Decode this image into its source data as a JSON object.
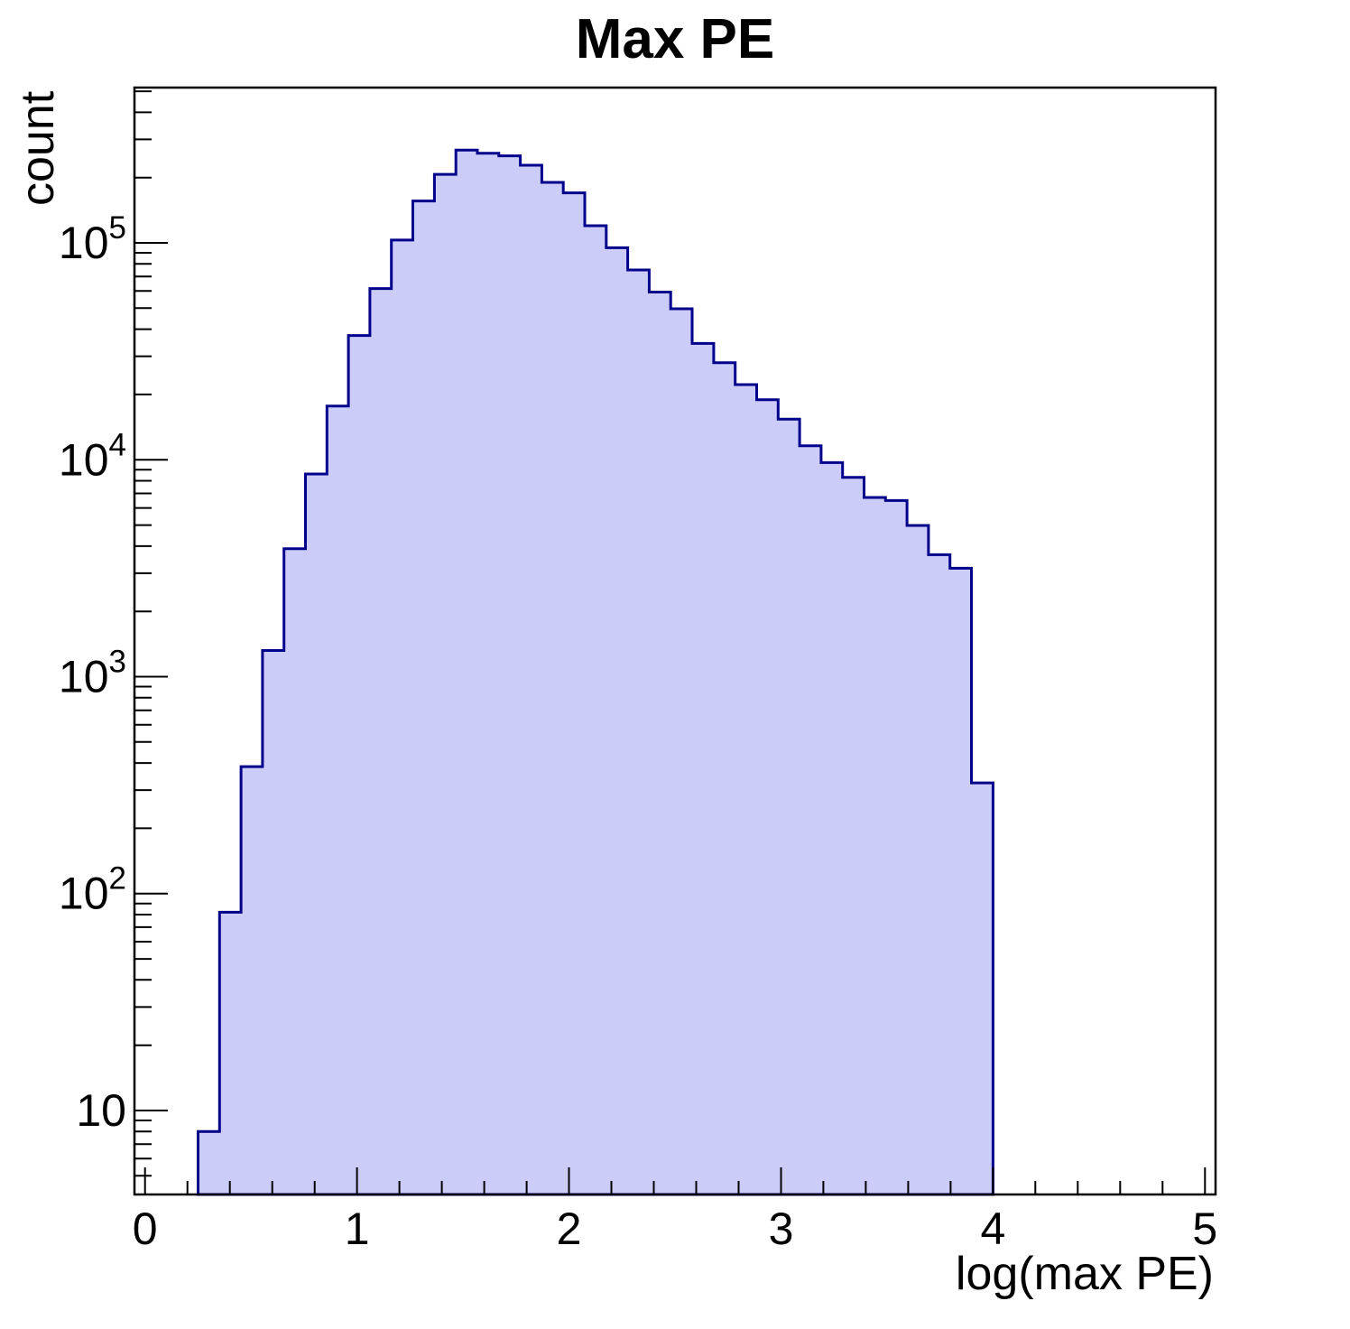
{
  "chart_data": {
    "type": "bar",
    "subtype": "histogram-log-y",
    "title": "Max PE",
    "xlabel": "log(max PE)",
    "ylabel": "count",
    "x_min": -0.05,
    "x_max": 5.05,
    "y_min": 4.1,
    "y_max": 520000,
    "y_scale": "log",
    "grid": false,
    "legend": null,
    "bin_start": 0.25,
    "bin_end": 4.0,
    "n_bins": 37,
    "values": [
      8,
      82,
      385,
      1320,
      3890,
      8600,
      17700,
      37400,
      61600,
      103000,
      156000,
      207000,
      268000,
      259000,
      252000,
      228000,
      190000,
      170000,
      120000,
      95000,
      75000,
      59300,
      49700,
      34400,
      28000,
      22200,
      18900,
      15400,
      11600,
      9700,
      8300,
      6700,
      6490,
      4980,
      3650,
      3160,
      324
    ],
    "x_ticks": [
      0,
      1,
      2,
      3,
      4,
      5
    ],
    "x_minor_step": 0.2,
    "y_tick_exponents": [
      1,
      2,
      3,
      4,
      5
    ],
    "fill_color": "#ccccf9",
    "line_color": "#00008b",
    "axis_color": "#000000"
  }
}
